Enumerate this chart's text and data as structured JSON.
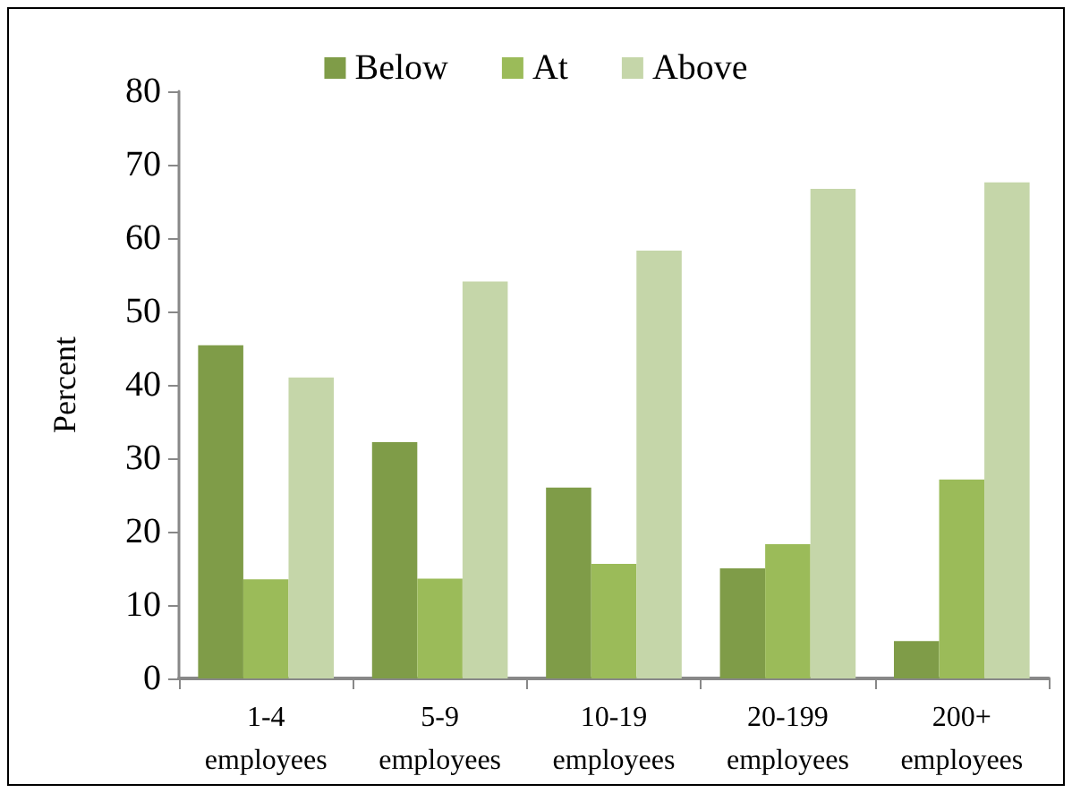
{
  "chart_data": {
    "type": "bar",
    "ylabel": "Percent",
    "categories": [
      "1-4\nemployees",
      "5-9\nemployees",
      "10-19\nemployees",
      "20-199\nemployees",
      "200+\nemployees"
    ],
    "series": [
      {
        "name": "Below",
        "color": "#7f9c48",
        "values": [
          45.4,
          32.2,
          26.0,
          15.0,
          5.1
        ]
      },
      {
        "name": "At",
        "color": "#9bbb59",
        "values": [
          13.5,
          13.6,
          15.6,
          18.3,
          27.1
        ]
      },
      {
        "name": "Above",
        "color": "#c5d6a9",
        "values": [
          41.0,
          54.1,
          58.3,
          66.7,
          67.6
        ]
      }
    ],
    "ylim": [
      0,
      80
    ],
    "yticks": [
      0,
      10,
      20,
      30,
      40,
      50,
      60,
      70,
      80
    ],
    "grid": false,
    "legend": "top"
  }
}
